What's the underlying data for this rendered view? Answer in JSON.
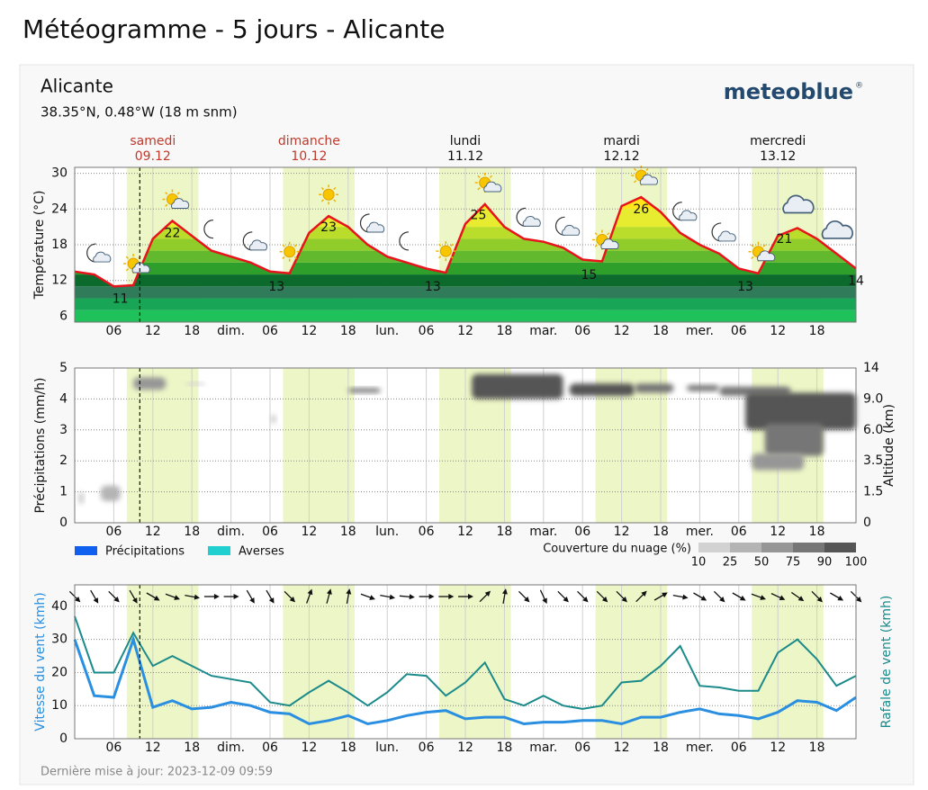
{
  "title": "Météogramme - 5 jours - Alicante",
  "location": {
    "name": "Alicante",
    "coords": "38.35°N, 0.48°W (18 m snm)"
  },
  "brand": "meteoblue",
  "brand_mark": "®",
  "updated": "Dernière mise à jour: 2023-12-09 09:59",
  "days": [
    {
      "name": "samedi",
      "date": "09.12",
      "weekend": true,
      "x": 12
    },
    {
      "name": "dimanche",
      "date": "10.12",
      "weekend": true,
      "x": 36
    },
    {
      "name": "lundi",
      "date": "11.12",
      "weekend": false,
      "x": 60
    },
    {
      "name": "mardi",
      "date": "12.12",
      "weekend": false,
      "x": 84
    },
    {
      "name": "mercredi",
      "date": "13.12",
      "weekend": false,
      "x": 108
    }
  ],
  "timeline": {
    "xlim": [
      0,
      120
    ],
    "now": 10,
    "daylight": [
      [
        8,
        19
      ],
      [
        32,
        43
      ],
      [
        56,
        67
      ],
      [
        80,
        91
      ],
      [
        104,
        115
      ]
    ],
    "xticks": [
      {
        "value": 6,
        "label": "06"
      },
      {
        "value": 12,
        "label": "12"
      },
      {
        "value": 18,
        "label": "18"
      },
      {
        "value": 24,
        "label": "dim."
      },
      {
        "value": 30,
        "label": "06"
      },
      {
        "value": 36,
        "label": "12"
      },
      {
        "value": 42,
        "label": "18"
      },
      {
        "value": 48,
        "label": "lun."
      },
      {
        "value": 54,
        "label": "06"
      },
      {
        "value": 60,
        "label": "12"
      },
      {
        "value": 66,
        "label": "18"
      },
      {
        "value": 72,
        "label": "mar."
      },
      {
        "value": 78,
        "label": "06"
      },
      {
        "value": 84,
        "label": "12"
      },
      {
        "value": 90,
        "label": "18"
      },
      {
        "value": 96,
        "label": "mer."
      },
      {
        "value": 102,
        "label": "06"
      },
      {
        "value": 108,
        "label": "12"
      },
      {
        "value": 114,
        "label": "18"
      }
    ]
  },
  "chart_data": [
    {
      "type": "line",
      "ylabel": "Température (°C)",
      "color": "#e8141c",
      "ylim": [
        5,
        31
      ],
      "yticks": [
        6,
        12,
        18,
        24,
        30
      ],
      "grid": true,
      "x": [
        0,
        3,
        6,
        9,
        12,
        15,
        18,
        21,
        24,
        27,
        30,
        33,
        36,
        39,
        42,
        45,
        48,
        51,
        54,
        57,
        60,
        63,
        66,
        69,
        72,
        75,
        78,
        81,
        84,
        87,
        90,
        93,
        96,
        99,
        102,
        105,
        108,
        111,
        114,
        117,
        120
      ],
      "values": [
        13.5,
        13,
        11,
        11.2,
        19,
        22,
        19.5,
        17,
        16,
        15,
        13.5,
        13.2,
        20,
        22.8,
        21,
        18,
        16,
        15,
        14,
        13.3,
        21.5,
        24.8,
        21,
        19,
        18.5,
        17.5,
        15.5,
        15.2,
        24.5,
        26,
        23.5,
        20,
        18,
        16.5,
        14,
        13.2,
        19.5,
        20.8,
        19,
        16.5,
        14
      ],
      "fill_levels": [
        5,
        7,
        9,
        11,
        13,
        15,
        17,
        19,
        21,
        24,
        27
      ],
      "fill_colors": [
        "#1fc25a",
        "#18a656",
        "#2f7b5a",
        "#0c6a2c",
        "#2f9f2c",
        "#62b92e",
        "#90cd2a",
        "#b9dd2a",
        "#e7ec30",
        "#ffe61a"
      ],
      "extremes": {
        "x": [
          7,
          15,
          31,
          39,
          55,
          62,
          79,
          87,
          103,
          109,
          120
        ],
        "values": [
          11,
          22,
          13,
          23,
          13,
          25,
          15,
          26,
          13,
          21,
          14
        ]
      },
      "icons": {
        "x": [
          3,
          9,
          15,
          21,
          27,
          33,
          39,
          45,
          51,
          57,
          63,
          69,
          75,
          81,
          87,
          93,
          99,
          105,
          111,
          117
        ],
        "symbols": [
          "moon-cloud",
          "sun-cloud",
          "sun-cloud",
          "moon",
          "moon-cloud",
          "sun",
          "sun",
          "moon-cloud",
          "moon",
          "sun",
          "sun-cloud",
          "moon-cloud",
          "moon-cloud",
          "sun-cloud",
          "sun-cloud",
          "moon-cloud",
          "moon-cloud",
          "sun-cloud",
          "cloud",
          "cloud"
        ]
      }
    },
    {
      "type": "bar",
      "ylabel": "Précipitations (mm/h)",
      "y2label": "Altitude (km)",
      "ylim": [
        0,
        5
      ],
      "yticks": [
        0,
        1,
        2,
        3,
        4,
        5
      ],
      "y2ticks": [
        0,
        1.5,
        3.5,
        {
          "value": 6,
          "label": "6.0"
        },
        {
          "value": 9,
          "label": "9.0"
        },
        14
      ],
      "grid": true,
      "x": [
        0,
        3,
        6,
        9,
        12,
        15,
        18,
        21,
        24,
        27,
        30,
        33,
        36,
        39,
        42,
        45,
        48,
        51,
        54,
        57,
        60,
        63,
        66,
        69,
        72,
        75,
        78,
        81,
        84,
        87,
        90,
        93,
        96,
        99,
        102,
        105,
        108,
        111,
        114,
        117,
        120
      ],
      "series": [
        {
          "name": "Précipitations",
          "color": "#1060f0",
          "values": [
            0,
            0,
            0,
            0,
            0,
            0,
            0,
            0,
            0,
            0,
            0,
            0,
            0,
            0,
            0,
            0,
            0,
            0,
            0,
            0,
            0,
            0,
            0,
            0,
            0,
            0,
            0,
            0,
            0,
            0,
            0,
            0,
            0,
            0,
            0,
            0,
            0,
            0,
            0,
            0,
            0
          ]
        },
        {
          "name": "Averses",
          "color": "#20d0d0",
          "values": [
            0,
            0,
            0,
            0,
            0,
            0,
            0,
            0,
            0,
            0,
            0,
            0,
            0,
            0,
            0,
            0,
            0,
            0,
            0,
            0,
            0,
            0,
            0,
            0,
            0,
            0,
            0,
            0,
            0,
            0,
            0,
            0,
            0,
            0,
            0,
            0,
            0,
            0,
            0,
            0,
            0
          ]
        }
      ],
      "clouds": [
        {
          "x": [
            0.5,
            1.5
          ],
          "altitude": [
            0.9,
            1.5
          ],
          "cover": 10
        },
        {
          "x": [
            4,
            7
          ],
          "altitude": [
            1.05,
            1.9
          ],
          "cover": 25
        },
        {
          "x": [
            9,
            14
          ],
          "altitude": [
            10.5,
            12.5
          ],
          "cover": 50
        },
        {
          "x": [
            17,
            20
          ],
          "altitude": [
            11.2,
            11.7
          ],
          "cover": 10
        },
        {
          "x": [
            30,
            31
          ],
          "altitude": [
            6.6,
            7.5
          ],
          "cover": 10
        },
        {
          "x": [
            42,
            47
          ],
          "altitude": [
            10,
            10.75
          ],
          "cover": 75
        },
        {
          "x": [
            61,
            75
          ],
          "altitude": [
            9,
            13
          ],
          "cover": 90
        },
        {
          "x": [
            76,
            86
          ],
          "altitude": [
            9.5,
            11.5
          ],
          "cover": 90
        },
        {
          "x": [
            86,
            92
          ],
          "altitude": [
            10,
            11.5
          ],
          "cover": 75
        },
        {
          "x": [
            94,
            99
          ],
          "altitude": [
            10.25,
            11.25
          ],
          "cover": 75
        },
        {
          "x": [
            99,
            110
          ],
          "altitude": [
            9.5,
            11
          ],
          "cover": 75
        },
        {
          "x": [
            103,
            120
          ],
          "altitude": [
            6,
            10
          ],
          "cover": 90
        },
        {
          "x": [
            106,
            115
          ],
          "altitude": [
            3.9,
            6.6
          ],
          "cover": 75
        },
        {
          "x": [
            104,
            112
          ],
          "altitude": [
            2.9,
            4.1
          ],
          "cover": 50
        }
      ],
      "cloud_legend": {
        "title": "Couverture du nuage (%)",
        "levels": [
          10,
          25,
          50,
          75,
          90,
          100
        ],
        "colors": [
          "#d2d2d2",
          "#b4b4b4",
          "#969696",
          "#767676",
          "#555555"
        ]
      }
    },
    {
      "type": "line",
      "ylabel": "Vitesse du vent (kmh)",
      "y2label": "Rafale de vent (kmh)",
      "ylim": [
        0,
        46.5
      ],
      "yticks": [
        0,
        10,
        20,
        30,
        40
      ],
      "grid": true,
      "x": [
        0,
        3,
        6,
        9,
        12,
        15,
        18,
        21,
        24,
        27,
        30,
        33,
        36,
        39,
        42,
        45,
        48,
        51,
        54,
        57,
        60,
        63,
        66,
        69,
        72,
        75,
        78,
        81,
        84,
        87,
        90,
        93,
        96,
        99,
        102,
        105,
        108,
        111,
        114,
        117,
        120
      ],
      "series": [
        {
          "color": "#2a8fe0",
          "values": [
            30,
            13,
            12.5,
            30,
            9.5,
            11.5,
            9,
            9.5,
            11,
            10,
            8,
            7.5,
            4.5,
            5.5,
            7,
            4.5,
            5.5,
            7,
            8,
            8.5,
            6,
            6.5,
            6.5,
            4.5,
            5,
            5,
            5.5,
            5.5,
            4.5,
            6.5,
            6.5,
            8,
            9,
            7.5,
            7,
            6,
            8,
            11.5,
            11,
            8.5,
            12.5
          ]
        },
        {
          "color": "#1a8a8a",
          "values": [
            37,
            20,
            20,
            32,
            22,
            25,
            22,
            19,
            18,
            17,
            11,
            10,
            14,
            17.5,
            14,
            10,
            14,
            19.5,
            19,
            13,
            17,
            23,
            12,
            10,
            13,
            10,
            9,
            10,
            17,
            17.5,
            22,
            28,
            16,
            15.5,
            14.5,
            14.5,
            26,
            30,
            24,
            16,
            19
          ]
        }
      ],
      "wind_direction": [
        135,
        150,
        135,
        150,
        120,
        110,
        100,
        90,
        90,
        150,
        150,
        135,
        20,
        15,
        10,
        110,
        100,
        95,
        90,
        90,
        90,
        45,
        10,
        135,
        155,
        135,
        135,
        135,
        135,
        45,
        60,
        100,
        120,
        135,
        120,
        110,
        115,
        125,
        135,
        120,
        135
      ]
    }
  ]
}
